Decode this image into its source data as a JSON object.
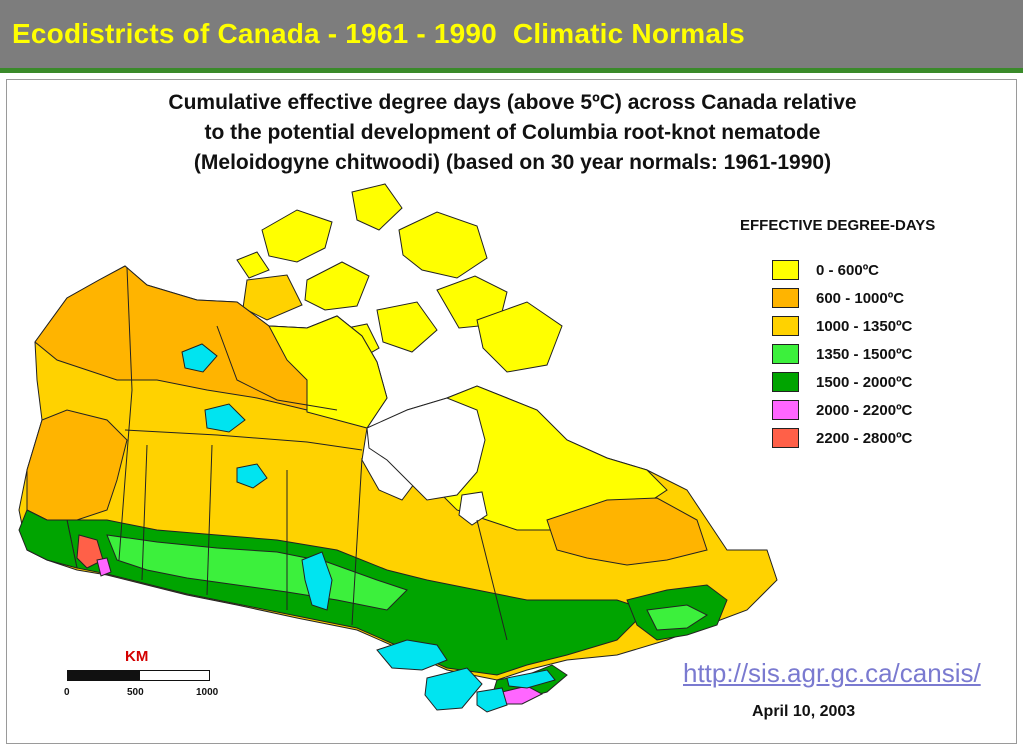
{
  "slide": {
    "title": "Ecodistricts of Canada - 1961 - 1990  Climatic Normals",
    "title_color": "#ffff00",
    "header_background": "#7d7d7d",
    "rule_color": "#3a8a2a"
  },
  "map": {
    "title_lines": [
      "Cumulative effective degree days (above 5ºC) across Canada relative",
      "to the potential development of Columbia root-knot nematode",
      "(Meloidogyne chitwoodi) (based on 30 year normals: 1961-1990)"
    ],
    "legend": {
      "title": "EFFECTIVE DEGREE-DAYS",
      "items": [
        {
          "label": "0 - 600ºC",
          "color": "#ffff00"
        },
        {
          "label": "600 - 1000ºC",
          "color": "#ffb400"
        },
        {
          "label": "1000 - 1350ºC",
          "color": "#ffd200"
        },
        {
          "label": "1350 - 1500ºC",
          "color": "#3cf03c"
        },
        {
          "label": "1500 - 2000ºC",
          "color": "#00a400"
        },
        {
          "label": "2000 - 2200ºC",
          "color": "#ff66ff"
        },
        {
          "label": "2200 - 2800ºC",
          "color": "#ff6048"
        }
      ]
    },
    "water_color": "#00e4f0",
    "scale_bar": {
      "unit_label": "KM",
      "ticks": [
        "0",
        "500",
        "1000"
      ]
    },
    "source_url": "http://sis.agr.gc.ca/cansis/",
    "date": "April 10, 2003"
  }
}
